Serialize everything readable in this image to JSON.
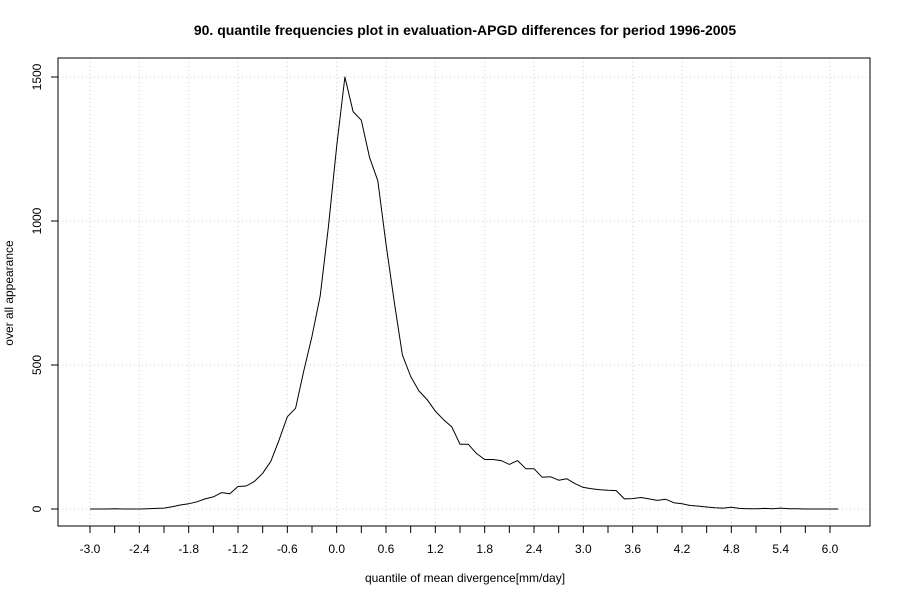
{
  "chart_data": {
    "type": "line",
    "title": "90. quantile frequencies plot in evaluation-APGD differences for period 1996-2005",
    "xlabel": "quantile of mean divergence[mm/day]",
    "ylabel": "over all appearance",
    "xlim": [
      -3.0,
      6.1
    ],
    "ylim": [
      0,
      1500
    ],
    "x_ticks": [
      -3.0,
      -2.7,
      -2.4,
      -2.1,
      -1.8,
      -1.5,
      -1.2,
      -0.9,
      -0.6,
      -0.3,
      0.0,
      0.3,
      0.6,
      0.9,
      1.2,
      1.5,
      1.8,
      2.1,
      2.4,
      2.7,
      3.0,
      3.3,
      3.6,
      3.9,
      4.2,
      4.5,
      4.8,
      5.1,
      5.4,
      5.7,
      6.0
    ],
    "x_tick_labels": [
      "-3.0",
      "-2.4",
      "-1.8",
      "-1.2",
      "-0.6",
      "0.0",
      "0.6",
      "1.2",
      "1.8",
      "2.4",
      "3.0",
      "3.6",
      "4.2",
      "4.8",
      "5.4",
      "6.0"
    ],
    "y_tick_labels": [
      "0",
      "500",
      "1000",
      "1500"
    ],
    "grid": true,
    "series": [
      {
        "x": [
          -3.0,
          -2.9,
          -2.8,
          -2.7,
          -2.6,
          -2.5,
          -2.4,
          -2.3,
          -2.2,
          -2.1,
          -2.0,
          -1.9,
          -1.8,
          -1.7,
          -1.6,
          -1.5,
          -1.4,
          -1.3,
          -1.2,
          -1.1,
          -1.0,
          -0.9,
          -0.8,
          -0.7,
          -0.6,
          -0.5,
          -0.4,
          -0.3,
          -0.2,
          -0.1,
          0.0,
          0.1,
          0.2,
          0.3,
          0.4,
          0.5,
          0.6,
          0.7,
          0.8,
          0.9,
          1.0,
          1.1,
          1.2,
          1.3,
          1.4,
          1.5,
          1.6,
          1.7,
          1.8,
          1.9,
          2.0,
          2.1,
          2.2,
          2.3,
          2.4,
          2.5,
          2.6,
          2.7,
          2.8,
          2.9,
          3.0,
          3.1,
          3.2,
          3.3,
          3.4,
          3.5,
          3.6,
          3.7,
          3.8,
          3.9,
          4.0,
          4.1,
          4.2,
          4.3,
          4.4,
          4.5,
          4.6,
          4.7,
          4.8,
          4.9,
          5.0,
          5.1,
          5.2,
          5.3,
          5.4,
          5.5,
          5.6,
          5.7,
          5.8,
          5.9,
          6.0,
          6.1
        ],
        "y": [
          0,
          0,
          0,
          1,
          0,
          0,
          0,
          1,
          2,
          3,
          8,
          14,
          18,
          25,
          35,
          42,
          57,
          53,
          78,
          80,
          96,
          124,
          166,
          240,
          320,
          350,
          480,
          600,
          740,
          980,
          1260,
          1500,
          1380,
          1350,
          1220,
          1140,
          920,
          720,
          535,
          460,
          410,
          380,
          340,
          310,
          285,
          225,
          225,
          193,
          172,
          172,
          168,
          155,
          168,
          140,
          140,
          110,
          112,
          100,
          105,
          88,
          75,
          70,
          67,
          65,
          64,
          35,
          36,
          40,
          35,
          30,
          34,
          22,
          18,
          12,
          10,
          7,
          4,
          3,
          6,
          2,
          1,
          1,
          2,
          1,
          3,
          1,
          1,
          0,
          0,
          0,
          0,
          0
        ]
      }
    ]
  }
}
